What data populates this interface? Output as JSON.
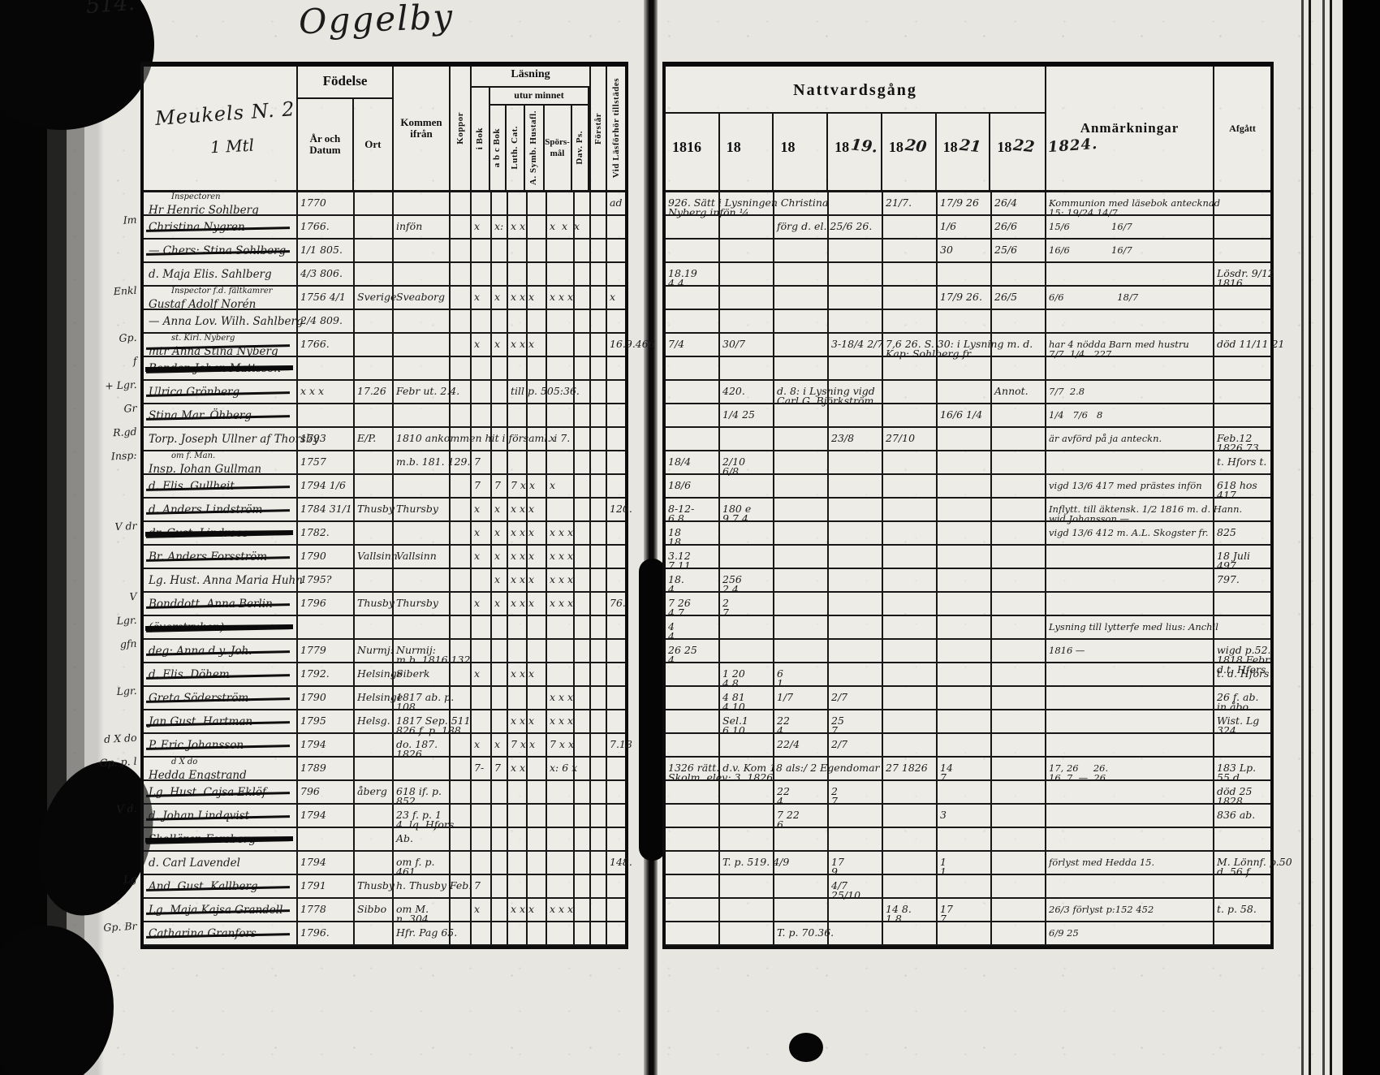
{
  "colors": {
    "paper": "#e8e6e1",
    "ink": "#1b1b1b",
    "print": "#0f0f0f"
  },
  "page": {
    "page_number": "514.",
    "title": "Oggelby",
    "household_title_line1": "Meukels N. 2",
    "household_title_line2": "1 Mtl"
  },
  "left_header": {
    "fodelse": "Födelse",
    "ar_och_datum": "År och Datum",
    "ort": "Ort",
    "kommen_ifran": "Kommen ifrån",
    "koppor": "Koppor",
    "lasning": "Läsning",
    "i_bok": "i Bok",
    "utur_minnet": "utur minnet",
    "abc_bok": "a b c Bok",
    "luth_cat": "Luth. Cat.",
    "a_symb_hustafl": "A. Symb. Hustafl.",
    "sporsmal": "Spörs- mål",
    "dav_ps": "Dav. Ps.",
    "forstar": "Förstår",
    "vid_lasforhor": "Vid Läsförhör tillstädes"
  },
  "right_header": {
    "nattvardsgang": "Nattvardsgång",
    "years": [
      "1816",
      "18",
      "18",
      "18",
      "18",
      "18",
      "18"
    ],
    "hw_years": [
      "",
      "",
      "",
      "19.",
      "20",
      "21",
      "22"
    ],
    "hw_extra": "1824.",
    "anmarkningar": "Anmärkningar",
    "afgatt": "Afgått"
  },
  "rows": [
    {
      "l": {
        "h": "Inspectoren",
        "n": "Hr Henric Sohlberg",
        "b": "1770",
        "vl": "ad"
      },
      "r": {
        "c0": "926. Sätt i Lysningen Christina\nNyberg infön ¼",
        "c4": "21/7.",
        "c5": "17/9 26",
        "c6": "26/4",
        "a": "Kommunion med läsebok antecknad\n15: 19/24 14/7"
      }
    },
    {
      "l": {
        "m": "Im",
        "n": "Christina Nygren",
        "s": 1,
        "b": "1766.",
        "f": "infön",
        "bo": "x",
        "ab": "x:",
        "lu": "x x",
        "sp": "x  x  x"
      },
      "r": {
        "c2": "förg d. el. 25/6 26.",
        "c5": "1/6",
        "c6": "26/6",
        "a": "15/6              16/7"
      }
    },
    {
      "l": {
        "n": "— Chers: Stina Sohlberg",
        "s": 1,
        "b": "1/1 805."
      },
      "r": {
        "c5": "30",
        "c6": "25/6",
        "a": "16/6              16/7"
      }
    },
    {
      "l": {
        "n": "d. Maja Elis. Sahlberg",
        "b": "4/3 806."
      },
      "r": {
        "c0": "18.19\n4 4",
        "g": "Lösdr. 9/12\n1816."
      }
    },
    {
      "l": {
        "m": "Enkl",
        "h": "Inspector f.d. fältkamrer",
        "n": "Gustaf Adolf Norén",
        "b": "1756 4/1",
        "o": "Sverige",
        "f": "Sveaborg",
        "bo": "x",
        "ab": "x",
        "lu": "x x x",
        "sp": "x x x",
        "vl": "x"
      },
      "r": {
        "c5": "17/9 26.",
        "c6": "26/5",
        "a": "6/6                  18/7"
      }
    },
    {
      "l": {
        "n": "— Anna Lov. Wilh. Sahlberg",
        "b": "2/4 809."
      },
      "r": {}
    },
    {
      "l": {
        "m": "Gp.",
        "h": "st. Kirl. Nyberg",
        "n": "mtr Anna Stina Nyberg",
        "s": 1,
        "b": "1766.",
        "bo": "x",
        "ab": "x",
        "lu": "x x x",
        "vl": "16.9.466"
      },
      "r": {
        "c0": "7/4",
        "c1": "30/7",
        "c3": "3-18/4 2/7",
        "c4": "7,6 26. S. 30: i Lysning m. d.\nKap: Sohlberg fr. ...",
        "a": "har 4 nödda Barn med hustru\n7/7  1/4   227.",
        "g": "död 11/11 21"
      }
    },
    {
      "l": {
        "m": "f",
        "n": "Bonden Johan Mattsson",
        "s": 2
      },
      "r": {}
    },
    {
      "l": {
        "m": "+ Lgr.",
        "n": "Ulrica Grönberg",
        "s": 1,
        "b": "x x x",
        "o": "17.26",
        "f": "Febr ut. 2.4.",
        "lu": "till p. 505:36."
      },
      "r": {
        "c1": "420.",
        "c2": "d. 8: i Lysning vigd\nCarl G. Björkström",
        "c6": "Annot.",
        "a": "7/7  2.8"
      }
    },
    {
      "l": {
        "m": "Gr",
        "n": "Stina Mar. Öhberg",
        "s": 1
      },
      "r": {
        "c1": "1/4 25",
        "c5": "16/6 1/4",
        "a": "1/4   7/6   8"
      }
    },
    {
      "l": {
        "m": "R.gd",
        "n": "Torp. Joseph Ullner af Thorsby",
        "b": "1793",
        "o": "E/P.",
        "f": "1810 ankommen hit i församl. i 7.",
        "sp": "x"
      },
      "r": {
        "c3": "23/8",
        "c4": "27/10",
        "a": "är avförd på ja anteckn.",
        "g": "Feb.12\n1826.73"
      }
    },
    {
      "l": {
        "m": "Insp:",
        "h": "om f. Man.",
        "n": "Insp. Johan Gullman",
        "b": "1757",
        "f": "m.b. 181. 129.",
        "bo": "7"
      },
      "r": {
        "c0": "18/4",
        "c1": "2/10\n6/8",
        "g": "t. Hfors t."
      }
    },
    {
      "l": {
        "n": "d. Elis. Gullheit",
        "s": 1,
        "b": "1794 1/6",
        "bo": "7",
        "ab": "7",
        "lu": "7 x x",
        "sp": "x"
      },
      "r": {
        "c0": "18/6",
        "a": "vigd 13/6 417 med prästes infön",
        "g": "618 hos\n417."
      }
    },
    {
      "l": {
        "n": "d. Anders Lindström",
        "s": 1,
        "b": "1784 31/1",
        "o": "Thusby",
        "f": "Thursby",
        "bo": "x",
        "ab": "x",
        "lu": "x x x",
        "vl": "120."
      },
      "r": {
        "c0": "8-12-\n6.8",
        "c1": "180 e\n9 7 4",
        "a": "Inflytt. till äktensk. 1/2 1816 m. d. Hann.\nwid Johansson —"
      }
    },
    {
      "l": {
        "m": "V dr",
        "n": "dr. Gust. Lindroos",
        "s": 2,
        "b": "1782.",
        "bo": "x",
        "ab": "x",
        "lu": "x x x",
        "sp": "x x x"
      },
      "r": {
        "c0": "18\n18",
        "a": "vigd 13/6 412 m. A.L. Skogster fr.",
        "g": "825"
      }
    },
    {
      "l": {
        "n": "Br. Anders Forsström",
        "s": 1,
        "b": "1790",
        "o": "Vallsinn",
        "f": "Vallsinn",
        "bo": "x",
        "ab": "x",
        "lu": "x x x",
        "sp": "x x x"
      },
      "r": {
        "c0": "3.12\n7.11",
        "g": "18 Juli\n497."
      }
    },
    {
      "l": {
        "n": "Lg. Hust. Anna Maria Huhn",
        "b": "1795?",
        "ab": "x",
        "lu": "x x x",
        "sp": "x x x"
      },
      "r": {
        "c0": "18.\n4",
        "c1": "256\n2.4",
        "g": "797."
      }
    },
    {
      "l": {
        "m": "V",
        "n": "Bonddott. Anna Berlin",
        "s": 1,
        "b": "1796",
        "o": "Thusby",
        "f": "Thursby",
        "bo": "x",
        "ab": "x",
        "lu": "x x x",
        "sp": "x x x",
        "vl": "76."
      },
      "r": {
        "c0": "7 26\n4 7",
        "c1": "2\n7"
      }
    },
    {
      "l": {
        "m": "Lgr.",
        "n": "(överstruken)",
        "s": 2
      },
      "r": {
        "c0": "4\n4",
        "a": "Lysning till lytterfe med lius: Anchil"
      }
    },
    {
      "l": {
        "m": "gfn",
        "n": "deg: Anna d.y. Joh.",
        "s": 1,
        "b": "1779",
        "o": "Nurmj:",
        "f": "Nurmij:\nm.b. 1816 132"
      },
      "r": {
        "c0": "26 25\n4",
        "a": "1816 —",
        "g": "wigd p.52.\n1818 Febr.\nd.t. Hfors"
      }
    },
    {
      "l": {
        "n": "d. Elis. Döhem",
        "s": 1,
        "b": "1792.",
        "o": "Helsinge",
        "f": "Siberk",
        "bo": "x",
        "lu": "x x x"
      },
      "r": {
        "c1": "1 20\n4 8",
        "c2": "6\n1",
        "g": "t. d. Hfors"
      }
    },
    {
      "l": {
        "m": "Lgr.",
        "n": "Greta Söderström",
        "s": 1,
        "b": "1790",
        "o": "Helsinge",
        "f": "1817 ab. p.\n108",
        "sp": "x x x"
      },
      "r": {
        "c1": "4 81\n4.10",
        "c2": "1/7",
        "c3": "2/7",
        "g": "26 f. ab.\nin åbo"
      }
    },
    {
      "l": {
        "n": "Jan Gust. Hartman",
        "s": 1,
        "b": "1795",
        "o": "Helsg.",
        "f": "1817 Sep. 511\n826 f. p. 188.",
        "lu": "x x x",
        "sp": "x x x"
      },
      "r": {
        "c1": "Sel.1\n6.10",
        "c2": "22\n4",
        "c3": "25\n7",
        "g": "Wist. Lg\n324."
      }
    },
    {
      "l": {
        "m": "d X do",
        "n": "P. Eric Johansson",
        "s": 1,
        "b": "1794",
        "f": "do. 187.\n1826.",
        "bo": "x",
        "ab": "x",
        "lu": "7 x x",
        "sp": "7 x x",
        "vl": "7.18"
      },
      "r": {
        "c2": "22/4",
        "c3": "2/7"
      }
    },
    {
      "l": {
        "m": "Gp. p. l",
        "h": "d X do",
        "n": "Hedda Engstrand",
        "b": "1789",
        "bo": "7-",
        "ab": "7",
        "lu": "x x",
        "sp": "x: 6 x"
      },
      "r": {
        "c0": "1326 rätt. d.v. Kom 18 als:/ 2 Egendomar\nSkolm. elev: 3  1826.",
        "c4": "27 1826",
        "c5": "14\n7",
        "a": "17, 26     26.\n16. 7  —  26.",
        "g": "183 Lp.\n55 d"
      }
    },
    {
      "l": {
        "n": "Lg. Hust. Cajsa Eklöf",
        "s": 1,
        "b": "796",
        "o": "åberg",
        "f": "618 if. p.\n852."
      },
      "r": {
        "c2": "22\n4",
        "c3": "2\n7",
        "g": "död 25\n1828."
      }
    },
    {
      "l": {
        "m": "V d.",
        "n": "d. Johan Lindqvist",
        "s": 1,
        "b": "1794",
        "f": "23 f. p. 1\n4. lq. Hfors"
      },
      "r": {
        "c2": "7 22\n6",
        "c5": "3",
        "g": "836 ab."
      }
    },
    {
      "l": {
        "n": "Skollärar. Forsberg",
        "s": 2,
        "f": "Ab."
      },
      "r": {}
    },
    {
      "l": {
        "n": "d. Carl Lavendel",
        "b": "1794",
        "f": "om f. p.\n461.",
        "vl": "148."
      },
      "r": {
        "c1": "T. p. 519. 4/9",
        "c3": "17\n9",
        "c5": "1\n1",
        "a": "förlyst med Hedda 15.",
        "g": "M. Lönnf. p.50\nd. 56 f."
      }
    },
    {
      "l": {
        "m": "Lg",
        "n": "And. Gust. Kallberg",
        "s": 1,
        "b": "1791",
        "o": "Thusby",
        "f": "h. Thusby Feb.",
        "bo": "7"
      },
      "r": {
        "c3": "4/7\n25/10"
      }
    },
    {
      "l": {
        "n": "Lg. Maja Kajsa Grandell",
        "s": 1,
        "b": "1778",
        "o": "Sibbo",
        "f": "om M.\nn. 304",
        "bo": "x",
        "lu": "x x x",
        "sp": "x x x"
      },
      "r": {
        "c4": "14 8.\n1 8",
        "c5": "17\n7",
        "a": "26/3 förlyst p:152 452",
        "g": "t. p. 58."
      }
    },
    {
      "l": {
        "m": "Gp. Br",
        "n": "Catharina Granfors",
        "s": 1,
        "b": "1796.",
        "f": "Hfr. Pag 65."
      },
      "r": {
        "c2": "T. p. 70.36.",
        "a": "6/9 25"
      }
    }
  ]
}
